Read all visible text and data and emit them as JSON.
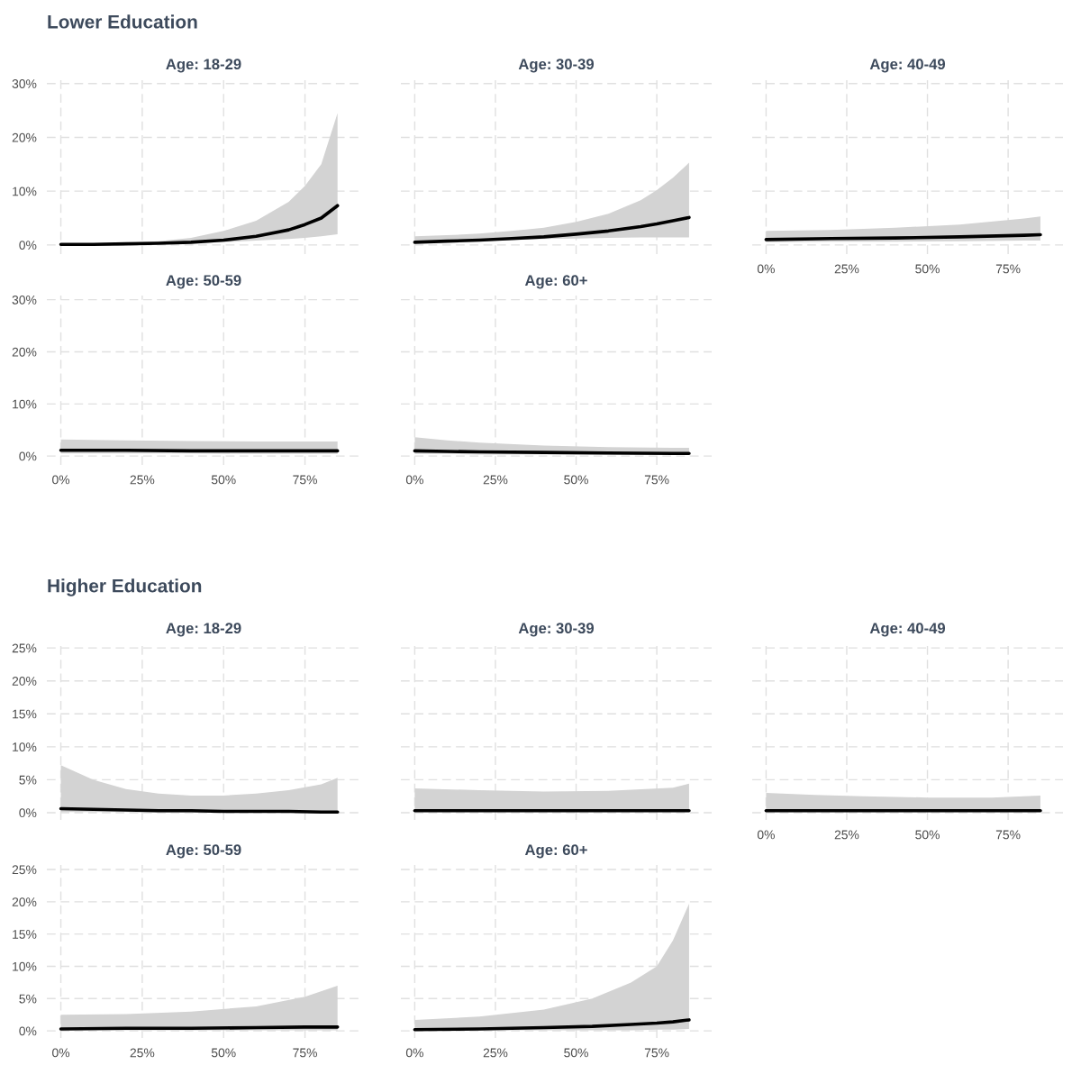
{
  "chart_data": [
    {
      "type": "line",
      "title": "Age: 18-29",
      "annotations": [
        "Lower Education"
      ],
      "tick_labels": "y",
      "grid": true,
      "xlim": [
        -4.3,
        92
      ],
      "ylim": [
        -1.7,
        30.8
      ],
      "xticks": [
        {
          "value": 0,
          "label": null
        },
        {
          "value": 25,
          "label": null
        },
        {
          "value": 50,
          "label": null
        },
        {
          "value": 75,
          "label": null
        }
      ],
      "yticks": [
        {
          "value": 0,
          "label": "0%"
        },
        {
          "value": 10,
          "label": "10%"
        },
        {
          "value": 20,
          "label": "20%"
        },
        {
          "value": 30,
          "label": "30%"
        }
      ],
      "series": [
        {
          "color": "#000000",
          "x": [
            0,
            10,
            20,
            30,
            40,
            50,
            60,
            70,
            75,
            80,
            85
          ],
          "values": [
            0.1,
            0.1,
            0.2,
            0.3,
            0.5,
            0.9,
            1.6,
            2.8,
            3.8,
            5.0,
            7.3
          ],
          "lower": [
            0.1,
            0.1,
            0.1,
            0.2,
            0.3,
            0.5,
            0.8,
            1.1,
            1.3,
            1.6,
            2.0
          ],
          "upper": [
            0.2,
            0.3,
            0.4,
            0.7,
            1.3,
            2.6,
            4.5,
            8,
            11,
            15,
            24.5
          ]
        }
      ]
    },
    {
      "type": "line",
      "title": "Age: 30-39",
      "tick_labels": false,
      "grid": true,
      "xlim": [
        -4.3,
        92
      ],
      "ylim": [
        -1.7,
        30.8
      ],
      "xticks": [
        {
          "value": 0,
          "label": null
        },
        {
          "value": 25,
          "label": null
        },
        {
          "value": 50,
          "label": null
        },
        {
          "value": 75,
          "label": null
        }
      ],
      "yticks": [
        {
          "value": 0,
          "label": null
        },
        {
          "value": 10,
          "label": null
        },
        {
          "value": 20,
          "label": null
        },
        {
          "value": 30,
          "label": null
        }
      ],
      "series": [
        {
          "color": "#000000",
          "x": [
            0,
            10,
            20,
            30,
            40,
            50,
            60,
            70,
            75,
            80,
            85
          ],
          "values": [
            0.5,
            0.7,
            0.9,
            1.2,
            1.5,
            2.0,
            2.6,
            3.4,
            3.9,
            4.5,
            5.1
          ],
          "lower": [
            0.3,
            0.5,
            0.7,
            0.9,
            1.1,
            1.2,
            1.3,
            1.4,
            1.4,
            1.4,
            1.4
          ],
          "upper": [
            1.6,
            1.8,
            2.1,
            2.6,
            3.2,
            4.3,
            5.8,
            8.3,
            10.2,
            12.5,
            15.3
          ]
        }
      ]
    },
    {
      "type": "line",
      "title": "Age: 40-49",
      "tick_labels": "x",
      "grid": true,
      "xlim": [
        -4.3,
        92
      ],
      "ylim": [
        -1.7,
        30.8
      ],
      "xticks": [
        {
          "value": 0,
          "label": "0%"
        },
        {
          "value": 25,
          "label": "25%"
        },
        {
          "value": 50,
          "label": "50%"
        },
        {
          "value": 75,
          "label": "75%"
        }
      ],
      "yticks": [
        {
          "value": 0,
          "label": null
        },
        {
          "value": 10,
          "label": null
        },
        {
          "value": 20,
          "label": null
        },
        {
          "value": 30,
          "label": null
        }
      ],
      "series": [
        {
          "color": "#000000",
          "x": [
            0,
            20,
            40,
            60,
            80,
            85
          ],
          "values": [
            1.0,
            1.2,
            1.3,
            1.5,
            1.8,
            1.9
          ],
          "lower": [
            0.5,
            0.6,
            0.6,
            0.7,
            0.8,
            0.8
          ],
          "upper": [
            2.6,
            2.8,
            3.2,
            3.8,
            4.9,
            5.3
          ]
        }
      ]
    },
    {
      "type": "line",
      "title": "Age: 50-59",
      "grid": true,
      "xlim": [
        -4.3,
        92
      ],
      "ylim": [
        -1.7,
        30.8
      ],
      "xticks": [
        {
          "value": 0,
          "label": "0%"
        },
        {
          "value": 25,
          "label": "25%"
        },
        {
          "value": 50,
          "label": "50%"
        },
        {
          "value": 75,
          "label": "75%"
        }
      ],
      "yticks": [
        {
          "value": 0,
          "label": "0%"
        },
        {
          "value": 10,
          "label": "10%"
        },
        {
          "value": 20,
          "label": "20%"
        },
        {
          "value": 30,
          "label": "30%"
        }
      ],
      "series": [
        {
          "color": "#000000",
          "x": [
            0,
            20,
            40,
            60,
            80,
            85
          ],
          "values": [
            1.1,
            1.1,
            1.0,
            1.0,
            1.0,
            1.0
          ],
          "lower": [
            0.5,
            0.5,
            0.5,
            0.4,
            0.4,
            0.4
          ],
          "upper": [
            3.2,
            3.0,
            2.9,
            2.8,
            2.8,
            2.8
          ]
        }
      ]
    },
    {
      "type": "line",
      "title": "Age: 60+",
      "tick_labels": "x",
      "grid": true,
      "xlim": [
        -4.3,
        92
      ],
      "ylim": [
        -1.7,
        30.8
      ],
      "xticks": [
        {
          "value": 0,
          "label": "0%"
        },
        {
          "value": 25,
          "label": "25%"
        },
        {
          "value": 50,
          "label": "50%"
        },
        {
          "value": 75,
          "label": "75%"
        }
      ],
      "yticks": [
        {
          "value": 0,
          "label": null
        },
        {
          "value": 10,
          "label": null
        },
        {
          "value": 20,
          "label": null
        },
        {
          "value": 30,
          "label": null
        }
      ],
      "series": [
        {
          "color": "#000000",
          "x": [
            0,
            10,
            20,
            40,
            60,
            80,
            85
          ],
          "values": [
            1.0,
            0.9,
            0.8,
            0.7,
            0.6,
            0.5,
            0.5
          ],
          "lower": [
            0.4,
            0.4,
            0.3,
            0.3,
            0.2,
            0.2,
            0.2
          ],
          "upper": [
            3.6,
            3.0,
            2.6,
            2.0,
            1.7,
            1.6,
            1.6
          ]
        }
      ]
    },
    {
      "type": "line",
      "title": "Age: 18-29",
      "annotations": [
        "Higher Education"
      ],
      "tick_labels": "y",
      "grid": true,
      "xlim": [
        -4.3,
        92
      ],
      "ylim": [
        -1.1,
        25.7
      ],
      "xticks": [
        {
          "value": 0,
          "label": null
        },
        {
          "value": 25,
          "label": null
        },
        {
          "value": 50,
          "label": null
        },
        {
          "value": 75,
          "label": null
        }
      ],
      "yticks": [
        {
          "value": 0,
          "label": "0%"
        },
        {
          "value": 5,
          "label": "5%"
        },
        {
          "value": 10,
          "label": "10%"
        },
        {
          "value": 15,
          "label": "15%"
        },
        {
          "value": 20,
          "label": "20%"
        },
        {
          "value": 25,
          "label": "25%"
        }
      ],
      "series": [
        {
          "color": "#000000",
          "x": [
            0,
            10,
            20,
            30,
            40,
            50,
            60,
            70,
            80,
            85
          ],
          "values": [
            0.6,
            0.5,
            0.4,
            0.3,
            0.3,
            0.2,
            0.2,
            0.2,
            0.1,
            0.1
          ],
          "lower": [
            0.1,
            0.1,
            0.1,
            0.0,
            0.0,
            0.0,
            0.0,
            0.0,
            0.0,
            0.0
          ],
          "upper": [
            7.2,
            5.0,
            3.6,
            2.9,
            2.6,
            2.6,
            2.9,
            3.4,
            4.3,
            5.3
          ]
        }
      ]
    },
    {
      "type": "line",
      "title": "Age: 30-39",
      "tick_labels": false,
      "grid": true,
      "xlim": [
        -4.3,
        92
      ],
      "ylim": [
        -1.1,
        25.7
      ],
      "xticks": [
        {
          "value": 0,
          "label": null
        },
        {
          "value": 25,
          "label": null
        },
        {
          "value": 50,
          "label": null
        },
        {
          "value": 75,
          "label": null
        }
      ],
      "yticks": [
        {
          "value": 0,
          "label": null
        },
        {
          "value": 5,
          "label": null
        },
        {
          "value": 10,
          "label": null
        },
        {
          "value": 15,
          "label": null
        },
        {
          "value": 20,
          "label": null
        },
        {
          "value": 25,
          "label": null
        }
      ],
      "series": [
        {
          "color": "#000000",
          "x": [
            0,
            20,
            40,
            60,
            80,
            85
          ],
          "values": [
            0.3,
            0.3,
            0.3,
            0.3,
            0.3,
            0.3
          ],
          "lower": [
            0.1,
            0.1,
            0.1,
            0.1,
            0.1,
            0.1
          ],
          "upper": [
            3.7,
            3.4,
            3.2,
            3.3,
            3.8,
            4.4
          ]
        }
      ]
    },
    {
      "type": "line",
      "title": "Age: 40-49",
      "tick_labels": "x",
      "grid": true,
      "xlim": [
        -4.3,
        92
      ],
      "ylim": [
        -1.1,
        25.7
      ],
      "xticks": [
        {
          "value": 0,
          "label": "0%"
        },
        {
          "value": 25,
          "label": "25%"
        },
        {
          "value": 50,
          "label": "50%"
        },
        {
          "value": 75,
          "label": "75%"
        }
      ],
      "yticks": [
        {
          "value": 0,
          "label": null
        },
        {
          "value": 5,
          "label": null
        },
        {
          "value": 10,
          "label": null
        },
        {
          "value": 15,
          "label": null
        },
        {
          "value": 20,
          "label": null
        },
        {
          "value": 25,
          "label": null
        }
      ],
      "series": [
        {
          "color": "#000000",
          "x": [
            0,
            15,
            30,
            50,
            70,
            85
          ],
          "values": [
            0.3,
            0.3,
            0.3,
            0.3,
            0.3,
            0.3
          ],
          "lower": [
            0.1,
            0.1,
            0.1,
            0.1,
            0.1,
            0.1
          ],
          "upper": [
            3.0,
            2.7,
            2.5,
            2.3,
            2.3,
            2.6
          ]
        }
      ]
    },
    {
      "type": "line",
      "title": "Age: 50-59",
      "grid": true,
      "xlim": [
        -4.3,
        92
      ],
      "ylim": [
        -1.1,
        25.7
      ],
      "xticks": [
        {
          "value": 0,
          "label": "0%"
        },
        {
          "value": 25,
          "label": "25%"
        },
        {
          "value": 50,
          "label": "50%"
        },
        {
          "value": 75,
          "label": "75%"
        }
      ],
      "yticks": [
        {
          "value": 0,
          "label": "0%"
        },
        {
          "value": 5,
          "label": "5%"
        },
        {
          "value": 10,
          "label": "10%"
        },
        {
          "value": 15,
          "label": "15%"
        },
        {
          "value": 20,
          "label": "20%"
        },
        {
          "value": 25,
          "label": "25%"
        }
      ],
      "series": [
        {
          "color": "#000000",
          "x": [
            0,
            20,
            40,
            60,
            75,
            85
          ],
          "values": [
            0.3,
            0.4,
            0.4,
            0.5,
            0.6,
            0.6
          ],
          "lower": [
            0.1,
            0.1,
            0.1,
            0.1,
            0.1,
            0.1
          ],
          "upper": [
            2.5,
            2.6,
            3.0,
            3.8,
            5.3,
            7.0
          ]
        }
      ]
    },
    {
      "type": "line",
      "title": "Age: 60+",
      "tick_labels": "x",
      "grid": true,
      "xlim": [
        -4.3,
        92
      ],
      "ylim": [
        -1.1,
        25.7
      ],
      "xticks": [
        {
          "value": 0,
          "label": "0%"
        },
        {
          "value": 25,
          "label": "25%"
        },
        {
          "value": 50,
          "label": "50%"
        },
        {
          "value": 75,
          "label": "75%"
        }
      ],
      "yticks": [
        {
          "value": 0,
          "label": null
        },
        {
          "value": 5,
          "label": null
        },
        {
          "value": 10,
          "label": null
        },
        {
          "value": 15,
          "label": null
        },
        {
          "value": 20,
          "label": null
        },
        {
          "value": 25,
          "label": null
        }
      ],
      "series": [
        {
          "color": "#000000",
          "x": [
            0,
            20,
            40,
            55,
            67,
            75,
            80,
            85
          ],
          "values": [
            0.2,
            0.3,
            0.5,
            0.7,
            1.0,
            1.2,
            1.4,
            1.7
          ],
          "lower": [
            0.1,
            0.1,
            0.1,
            0.1,
            0.1,
            0.2,
            0.2,
            0.3
          ],
          "upper": [
            1.7,
            2.2,
            3.3,
            5.0,
            7.5,
            10,
            14,
            19.7
          ]
        }
      ]
    }
  ]
}
